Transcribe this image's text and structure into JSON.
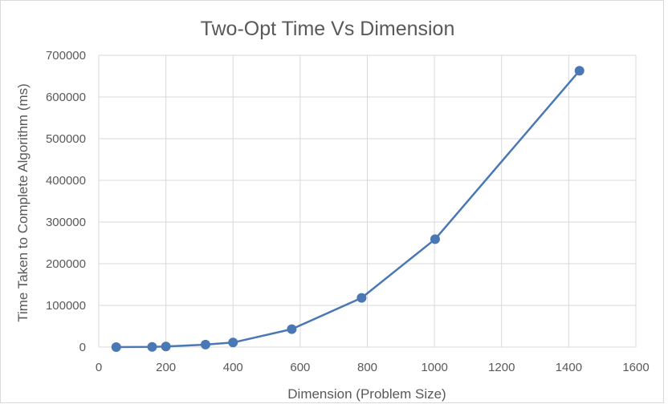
{
  "chart_data": {
    "type": "scatter",
    "title": "Two-Opt Time Vs Dimension",
    "xlabel": "Dimension (Problem Size)",
    "ylabel": "Time Taken to Complete Algorithm (ms)",
    "xlim": [
      0,
      1600
    ],
    "ylim": [
      0,
      700000
    ],
    "x_ticks": [
      0,
      200,
      400,
      600,
      800,
      1000,
      1200,
      1400,
      1600
    ],
    "y_ticks": [
      0,
      100000,
      200000,
      300000,
      400000,
      500000,
      600000,
      700000
    ],
    "grid": true,
    "legend": "none",
    "series": [
      {
        "color": "#4a78b4",
        "points": [
          {
            "x": 52,
            "y": 0
          },
          {
            "x": 159,
            "y": 500
          },
          {
            "x": 200,
            "y": 1500
          },
          {
            "x": 318,
            "y": 6000
          },
          {
            "x": 400,
            "y": 11000
          },
          {
            "x": 575,
            "y": 43000
          },
          {
            "x": 783,
            "y": 118000
          },
          {
            "x": 1002,
            "y": 259000
          },
          {
            "x": 1432,
            "y": 663000
          }
        ]
      }
    ]
  }
}
